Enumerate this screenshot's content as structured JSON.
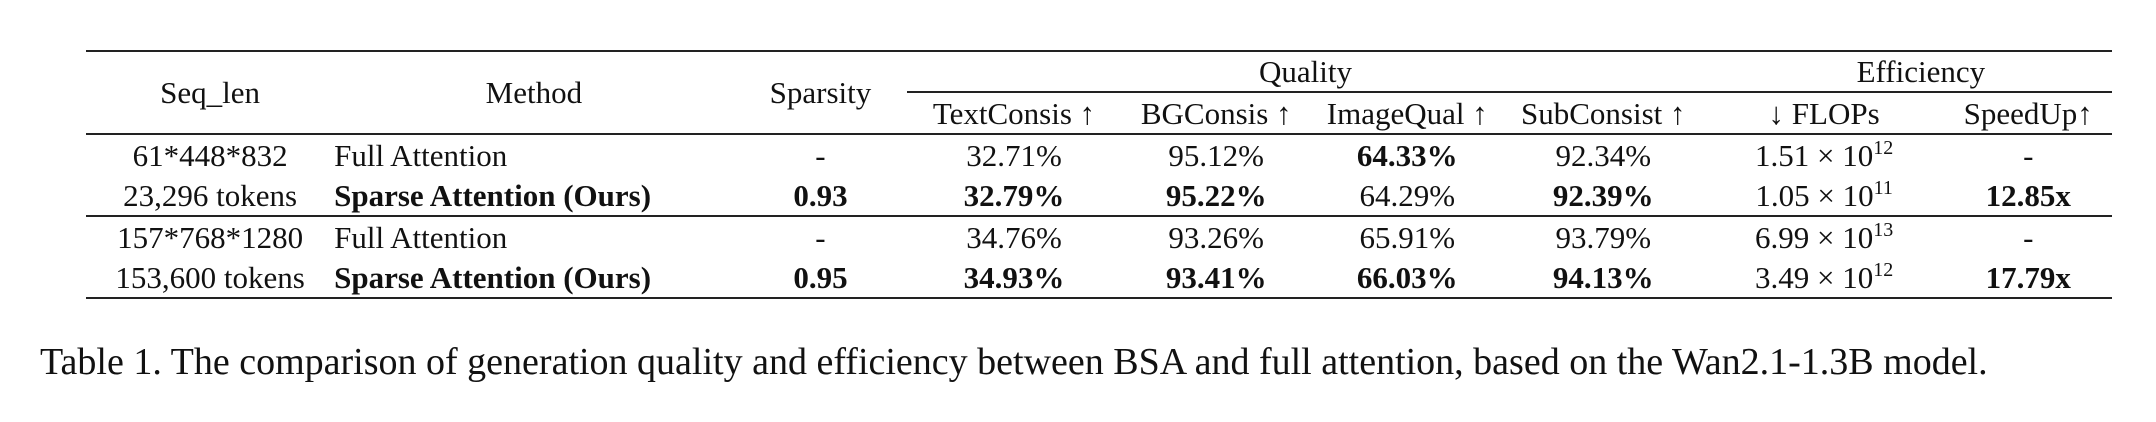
{
  "table": {
    "headers": {
      "seq_len": "Seq_len",
      "method": "Method",
      "sparsity": "Sparsity",
      "quality_group": "Quality",
      "efficiency_group": "Efficiency",
      "text_consis": "TextConsis ↑",
      "bg_consis": "BGConsis ↑",
      "image_qual": "ImageQual ↑",
      "sub_consist": "SubConsist ↑",
      "flops": "↓ FLOPs",
      "speedup": "SpeedUp↑"
    },
    "rows": [
      {
        "seq_len": "61*448*832",
        "method": "Full Attention",
        "sparsity": "-",
        "text_consis": "32.71%",
        "bg_consis": "95.12%",
        "image_qual": "64.33%",
        "sub_consist": "92.34%",
        "flops_mantissa": "1.51 × 10",
        "flops_exp": "12",
        "speedup": "-"
      },
      {
        "seq_len": "23,296 tokens",
        "method": "Sparse Attention (Ours)",
        "sparsity": "0.93",
        "text_consis": "32.79%",
        "bg_consis": "95.22%",
        "image_qual": "64.29%",
        "sub_consist": "92.39%",
        "flops_mantissa": "1.05 × 10",
        "flops_exp": "11",
        "speedup": "12.85x"
      },
      {
        "seq_len": "157*768*1280",
        "method": "Full Attention",
        "sparsity": "-",
        "text_consis": "34.76%",
        "bg_consis": "93.26%",
        "image_qual": "65.91%",
        "sub_consist": "93.79%",
        "flops_mantissa": "6.99 × 10",
        "flops_exp": "13",
        "speedup": "-"
      },
      {
        "seq_len": "153,600 tokens",
        "method": "Sparse Attention (Ours)",
        "sparsity": "0.95",
        "text_consis": "34.93%",
        "bg_consis": "93.41%",
        "image_qual": "66.03%",
        "sub_consist": "94.13%",
        "flops_mantissa": "3.49 × 10",
        "flops_exp": "12",
        "speedup": "17.79x"
      }
    ]
  },
  "caption": "Table 1. The comparison of generation quality and efficiency between BSA and full attention, based on the Wan2.1-1.3B model."
}
